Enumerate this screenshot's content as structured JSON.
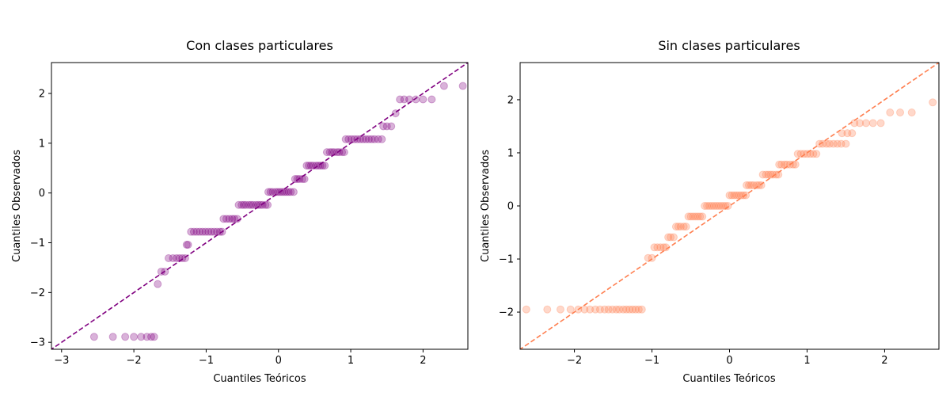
{
  "chart_data": [
    {
      "type": "scatter",
      "title": "Con clases particulares",
      "xlabel": "Cuantiles Teóricos",
      "ylabel": "Cuantiles Observados",
      "xlim": [
        -3.14,
        2.62
      ],
      "ylim": [
        -3.14,
        2.62
      ],
      "xticks": [
        -3,
        -2,
        -1,
        0,
        1,
        2
      ],
      "yticks": [
        -3,
        -2,
        -1,
        0,
        1,
        2
      ],
      "x_tick_labels": [
        "−3",
        "−2",
        "−1",
        "0",
        "1",
        "2"
      ],
      "y_tick_labels": [
        "−3",
        "−2",
        "−1",
        "0",
        "1",
        "2"
      ],
      "grid": false,
      "point_color": "#800080",
      "line_color": "#800080",
      "reference_line": "y = x",
      "points": [
        [
          -2.55,
          -2.89
        ],
        [
          -2.29,
          -2.89
        ],
        [
          -2.12,
          -2.89
        ],
        [
          -2.0,
          -2.89
        ],
        [
          -1.9,
          -2.89
        ],
        [
          -1.82,
          -2.89
        ],
        [
          -1.76,
          -2.89
        ],
        [
          -1.72,
          -2.89
        ],
        [
          -1.67,
          -1.83
        ],
        [
          -1.62,
          -1.58
        ],
        [
          -1.57,
          -1.58
        ],
        [
          -1.52,
          -1.31
        ],
        [
          -1.46,
          -1.31
        ],
        [
          -1.41,
          -1.31
        ],
        [
          -1.37,
          -1.31
        ],
        [
          -1.33,
          -1.31
        ],
        [
          -1.29,
          -1.31
        ],
        [
          -1.27,
          -1.04
        ],
        [
          -1.25,
          -1.04
        ],
        [
          -1.21,
          -0.78
        ],
        [
          -1.17,
          -0.78
        ],
        [
          -1.13,
          -0.78
        ],
        [
          -1.09,
          -0.78
        ],
        [
          -1.05,
          -0.78
        ],
        [
          -1.01,
          -0.78
        ],
        [
          -0.97,
          -0.78
        ],
        [
          -0.93,
          -0.78
        ],
        [
          -0.89,
          -0.78
        ],
        [
          -0.85,
          -0.78
        ],
        [
          -0.81,
          -0.78
        ],
        [
          -0.78,
          -0.78
        ],
        [
          -0.76,
          -0.52
        ],
        [
          -0.72,
          -0.52
        ],
        [
          -0.68,
          -0.52
        ],
        [
          -0.64,
          -0.52
        ],
        [
          -0.61,
          -0.52
        ],
        [
          -0.57,
          -0.52
        ],
        [
          -0.55,
          -0.24
        ],
        [
          -0.51,
          -0.24
        ],
        [
          -0.48,
          -0.24
        ],
        [
          -0.45,
          -0.24
        ],
        [
          -0.41,
          -0.24
        ],
        [
          -0.38,
          -0.24
        ],
        [
          -0.35,
          -0.24
        ],
        [
          -0.31,
          -0.24
        ],
        [
          -0.28,
          -0.24
        ],
        [
          -0.25,
          -0.24
        ],
        [
          -0.22,
          -0.24
        ],
        [
          -0.18,
          -0.24
        ],
        [
          -0.15,
          -0.24
        ],
        [
          -0.14,
          0.02
        ],
        [
          -0.11,
          0.02
        ],
        [
          -0.08,
          0.02
        ],
        [
          -0.04,
          0.02
        ],
        [
          -0.01,
          0.02
        ],
        [
          0.02,
          0.02
        ],
        [
          0.05,
          0.02
        ],
        [
          0.08,
          0.02
        ],
        [
          0.11,
          0.02
        ],
        [
          0.14,
          0.02
        ],
        [
          0.17,
          0.02
        ],
        [
          0.21,
          0.02
        ],
        [
          0.23,
          0.28
        ],
        [
          0.26,
          0.28
        ],
        [
          0.29,
          0.28
        ],
        [
          0.33,
          0.28
        ],
        [
          0.36,
          0.28
        ],
        [
          0.39,
          0.55
        ],
        [
          0.42,
          0.55
        ],
        [
          0.45,
          0.55
        ],
        [
          0.48,
          0.55
        ],
        [
          0.52,
          0.55
        ],
        [
          0.55,
          0.55
        ],
        [
          0.58,
          0.55
        ],
        [
          0.61,
          0.55
        ],
        [
          0.64,
          0.55
        ],
        [
          0.67,
          0.82
        ],
        [
          0.71,
          0.82
        ],
        [
          0.74,
          0.82
        ],
        [
          0.77,
          0.82
        ],
        [
          0.81,
          0.82
        ],
        [
          0.84,
          0.82
        ],
        [
          0.88,
          0.82
        ],
        [
          0.91,
          0.82
        ],
        [
          0.93,
          1.08
        ],
        [
          0.97,
          1.08
        ],
        [
          1.01,
          1.08
        ],
        [
          1.05,
          1.08
        ],
        [
          1.09,
          1.08
        ],
        [
          1.13,
          1.08
        ],
        [
          1.17,
          1.08
        ],
        [
          1.21,
          1.08
        ],
        [
          1.25,
          1.08
        ],
        [
          1.29,
          1.08
        ],
        [
          1.33,
          1.08
        ],
        [
          1.38,
          1.08
        ],
        [
          1.43,
          1.08
        ],
        [
          1.45,
          1.34
        ],
        [
          1.5,
          1.34
        ],
        [
          1.56,
          1.34
        ],
        [
          1.62,
          1.6
        ],
        [
          1.68,
          1.88
        ],
        [
          1.74,
          1.88
        ],
        [
          1.81,
          1.88
        ],
        [
          1.9,
          1.88
        ],
        [
          2.0,
          1.88
        ],
        [
          2.12,
          1.88
        ],
        [
          2.29,
          2.15
        ],
        [
          2.55,
          2.15
        ]
      ]
    },
    {
      "type": "scatter",
      "title": "Sin clases particulares",
      "xlabel": "Cuantiles Teóricos",
      "ylabel": "Cuantiles Observados",
      "xlim": [
        -2.7,
        2.7
      ],
      "ylim": [
        -2.7,
        2.7
      ],
      "xticks": [
        -2,
        -1,
        0,
        1,
        2
      ],
      "yticks": [
        -2,
        -1,
        0,
        1,
        2
      ],
      "x_tick_labels": [
        "−2",
        "−1",
        "0",
        "1",
        "2"
      ],
      "y_tick_labels": [
        "−2",
        "−1",
        "0",
        "1",
        "2"
      ],
      "grid": false,
      "point_color": "#ff7f50",
      "line_color": "#ff7f50",
      "reference_line": "y = x",
      "points": [
        [
          -2.62,
          -1.95
        ],
        [
          -2.35,
          -1.95
        ],
        [
          -2.18,
          -1.95
        ],
        [
          -2.05,
          -1.95
        ],
        [
          -1.95,
          -1.95
        ],
        [
          -1.87,
          -1.95
        ],
        [
          -1.8,
          -1.95
        ],
        [
          -1.73,
          -1.95
        ],
        [
          -1.67,
          -1.95
        ],
        [
          -1.61,
          -1.95
        ],
        [
          -1.56,
          -1.95
        ],
        [
          -1.51,
          -1.95
        ],
        [
          -1.46,
          -1.95
        ],
        [
          -1.42,
          -1.95
        ],
        [
          -1.37,
          -1.95
        ],
        [
          -1.33,
          -1.95
        ],
        [
          -1.29,
          -1.95
        ],
        [
          -1.25,
          -1.95
        ],
        [
          -1.21,
          -1.95
        ],
        [
          -1.17,
          -1.95
        ],
        [
          -1.13,
          -1.95
        ],
        [
          -1.05,
          -0.98
        ],
        [
          -1.0,
          -0.98
        ],
        [
          -0.97,
          -0.78
        ],
        [
          -0.93,
          -0.78
        ],
        [
          -0.89,
          -0.78
        ],
        [
          -0.85,
          -0.78
        ],
        [
          -0.82,
          -0.78
        ],
        [
          -0.79,
          -0.59
        ],
        [
          -0.76,
          -0.59
        ],
        [
          -0.72,
          -0.59
        ],
        [
          -0.69,
          -0.39
        ],
        [
          -0.66,
          -0.39
        ],
        [
          -0.63,
          -0.39
        ],
        [
          -0.59,
          -0.39
        ],
        [
          -0.56,
          -0.39
        ],
        [
          -0.53,
          -0.2
        ],
        [
          -0.5,
          -0.2
        ],
        [
          -0.47,
          -0.2
        ],
        [
          -0.44,
          -0.2
        ],
        [
          -0.41,
          -0.2
        ],
        [
          -0.38,
          -0.2
        ],
        [
          -0.35,
          -0.2
        ],
        [
          -0.32,
          0.0
        ],
        [
          -0.29,
          0.0
        ],
        [
          -0.26,
          0.0
        ],
        [
          -0.23,
          0.0
        ],
        [
          -0.2,
          0.0
        ],
        [
          -0.17,
          0.0
        ],
        [
          -0.14,
          0.0
        ],
        [
          -0.11,
          0.0
        ],
        [
          -0.08,
          0.0
        ],
        [
          -0.05,
          0.0
        ],
        [
          -0.02,
          0.0
        ],
        [
          0.0,
          0.2
        ],
        [
          0.03,
          0.2
        ],
        [
          0.06,
          0.2
        ],
        [
          0.09,
          0.2
        ],
        [
          0.12,
          0.2
        ],
        [
          0.15,
          0.2
        ],
        [
          0.18,
          0.2
        ],
        [
          0.21,
          0.2
        ],
        [
          0.22,
          0.39
        ],
        [
          0.25,
          0.39
        ],
        [
          0.28,
          0.39
        ],
        [
          0.31,
          0.39
        ],
        [
          0.35,
          0.39
        ],
        [
          0.38,
          0.39
        ],
        [
          0.41,
          0.39
        ],
        [
          0.43,
          0.59
        ],
        [
          0.47,
          0.59
        ],
        [
          0.5,
          0.59
        ],
        [
          0.53,
          0.59
        ],
        [
          0.56,
          0.59
        ],
        [
          0.6,
          0.59
        ],
        [
          0.63,
          0.59
        ],
        [
          0.64,
          0.78
        ],
        [
          0.67,
          0.78
        ],
        [
          0.71,
          0.78
        ],
        [
          0.74,
          0.78
        ],
        [
          0.78,
          0.78
        ],
        [
          0.82,
          0.78
        ],
        [
          0.85,
          0.78
        ],
        [
          0.88,
          0.98
        ],
        [
          0.92,
          0.98
        ],
        [
          0.96,
          0.98
        ],
        [
          1.0,
          0.98
        ],
        [
          1.04,
          0.98
        ],
        [
          1.08,
          0.98
        ],
        [
          1.12,
          0.98
        ],
        [
          1.16,
          1.17
        ],
        [
          1.2,
          1.17
        ],
        [
          1.25,
          1.17
        ],
        [
          1.29,
          1.17
        ],
        [
          1.34,
          1.17
        ],
        [
          1.39,
          1.17
        ],
        [
          1.44,
          1.17
        ],
        [
          1.5,
          1.17
        ],
        [
          1.45,
          1.37
        ],
        [
          1.52,
          1.37
        ],
        [
          1.58,
          1.37
        ],
        [
          1.61,
          1.56
        ],
        [
          1.68,
          1.56
        ],
        [
          1.76,
          1.56
        ],
        [
          1.85,
          1.56
        ],
        [
          1.95,
          1.56
        ],
        [
          2.07,
          1.76
        ],
        [
          2.2,
          1.76
        ],
        [
          2.35,
          1.76
        ],
        [
          2.62,
          1.95
        ]
      ]
    }
  ]
}
